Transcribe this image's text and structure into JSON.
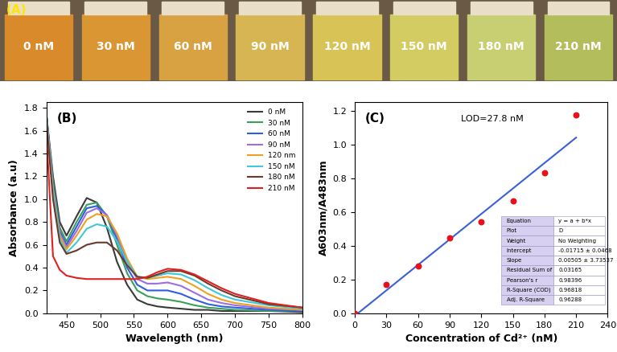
{
  "chart_data": [
    {
      "type": "vials",
      "label": "(A)",
      "categories": [
        "0 nM",
        "30 nM",
        "60 nM",
        "90 nM",
        "120 nM",
        "150 nM",
        "180 nM",
        "210 nM"
      ],
      "colors": [
        "#d98a2a",
        "#d99632",
        "#d8a242",
        "#d6b552",
        "#d8c456",
        "#d2cc62",
        "#c8cf72",
        "#b4bd5c"
      ]
    },
    {
      "type": "line",
      "label": "(B)",
      "x_label": "Wavelength (nm)",
      "y_label": "Absorbance (a.u)",
      "x": [
        420,
        430,
        440,
        450,
        465,
        480,
        495,
        510,
        525,
        540,
        555,
        570,
        585,
        600,
        620,
        640,
        660,
        680,
        700,
        750,
        800
      ],
      "series": [
        {
          "name": "0 nM",
          "color": "#3a3a3a",
          "values": [
            1.75,
            1.2,
            0.8,
            0.68,
            0.85,
            1.01,
            0.97,
            0.75,
            0.45,
            0.25,
            0.12,
            0.08,
            0.06,
            0.05,
            0.04,
            0.03,
            0.03,
            0.02,
            0.02,
            0.02,
            0.01
          ]
        },
        {
          "name": "30 nM",
          "color": "#3aa05a",
          "values": [
            1.75,
            1.15,
            0.75,
            0.63,
            0.8,
            0.95,
            0.97,
            0.85,
            0.6,
            0.35,
            0.2,
            0.15,
            0.13,
            0.12,
            0.1,
            0.07,
            0.05,
            0.04,
            0.03,
            0.02,
            0.02
          ]
        },
        {
          "name": "60 nM",
          "color": "#2f5fe0",
          "values": [
            1.75,
            1.12,
            0.72,
            0.6,
            0.76,
            0.92,
            0.94,
            0.86,
            0.65,
            0.4,
            0.25,
            0.2,
            0.2,
            0.2,
            0.17,
            0.12,
            0.08,
            0.06,
            0.05,
            0.03,
            0.02
          ]
        },
        {
          "name": "90 nM",
          "color": "#9b6fe0",
          "values": [
            1.74,
            1.1,
            0.7,
            0.58,
            0.72,
            0.88,
            0.92,
            0.86,
            0.68,
            0.45,
            0.3,
            0.26,
            0.26,
            0.27,
            0.24,
            0.18,
            0.12,
            0.09,
            0.07,
            0.04,
            0.03
          ]
        },
        {
          "name": "120 nm",
          "color": "#f0a020",
          "values": [
            1.73,
            1.08,
            0.68,
            0.56,
            0.68,
            0.82,
            0.87,
            0.85,
            0.7,
            0.48,
            0.32,
            0.3,
            0.31,
            0.32,
            0.3,
            0.24,
            0.17,
            0.12,
            0.09,
            0.05,
            0.03
          ]
        },
        {
          "name": "150 nM",
          "color": "#3ec8d8",
          "values": [
            1.72,
            1.05,
            0.65,
            0.53,
            0.62,
            0.74,
            0.78,
            0.76,
            0.63,
            0.45,
            0.32,
            0.31,
            0.33,
            0.35,
            0.34,
            0.29,
            0.22,
            0.16,
            0.12,
            0.07,
            0.04
          ]
        },
        {
          "name": "180 nM",
          "color": "#6b3a2a",
          "values": [
            1.7,
            1.0,
            0.62,
            0.52,
            0.55,
            0.6,
            0.62,
            0.62,
            0.55,
            0.42,
            0.32,
            0.31,
            0.34,
            0.37,
            0.37,
            0.33,
            0.26,
            0.2,
            0.15,
            0.08,
            0.05
          ]
        },
        {
          "name": "210 nM",
          "color": "#e02020",
          "values": [
            1.6,
            0.5,
            0.38,
            0.33,
            0.31,
            0.3,
            0.3,
            0.3,
            0.3,
            0.3,
            0.3,
            0.32,
            0.36,
            0.39,
            0.38,
            0.34,
            0.28,
            0.22,
            0.17,
            0.09,
            0.05
          ]
        }
      ],
      "xlim": [
        420,
        800
      ],
      "ylim": [
        0,
        1.85
      ],
      "xticks": [
        450,
        500,
        550,
        600,
        650,
        700,
        750,
        800
      ],
      "yticks": [
        0.0,
        0.2,
        0.4,
        0.6,
        0.8,
        1.0,
        1.2,
        1.4,
        1.6,
        1.8
      ],
      "legend": "upper right"
    },
    {
      "type": "scatter",
      "label": "(C)",
      "x_label": "Concentration of Cd²⁺ (nM)",
      "y_label": "A603nm/A483nm",
      "x": [
        0,
        30,
        60,
        90,
        120,
        150,
        180,
        210
      ],
      "values": [
        0.0,
        0.17,
        0.28,
        0.445,
        0.54,
        0.665,
        0.83,
        1.175
      ],
      "color": "#e8101a",
      "fit": {
        "x": [
          3,
          210
        ],
        "values": [
          0.0,
          1.04
        ],
        "color": "#3a5fd8"
      },
      "annotation": "LOD=27.8 nM",
      "stats_table": [
        [
          "Equation",
          "y = a + b*x"
        ],
        [
          "Plot",
          "D"
        ],
        [
          "Weight",
          "No Weighting"
        ],
        [
          "Intercept",
          "-0.01715 ± 0.0468"
        ],
        [
          "Slope",
          "0.00505 ± 3.73537"
        ],
        [
          "Residual Sum of Sq",
          "0.03165"
        ],
        [
          "Pearson's r",
          "0.98396"
        ],
        [
          "R-Square (COD)",
          "0.96818"
        ],
        [
          "Adj. R-Square",
          "0.96288"
        ]
      ],
      "xlim": [
        0,
        240
      ],
      "ylim": [
        0,
        1.25
      ],
      "xticks": [
        0,
        30,
        60,
        90,
        120,
        150,
        180,
        210,
        240
      ],
      "yticks": [
        0.0,
        0.2,
        0.4,
        0.6,
        0.8,
        1.0,
        1.2
      ]
    }
  ]
}
